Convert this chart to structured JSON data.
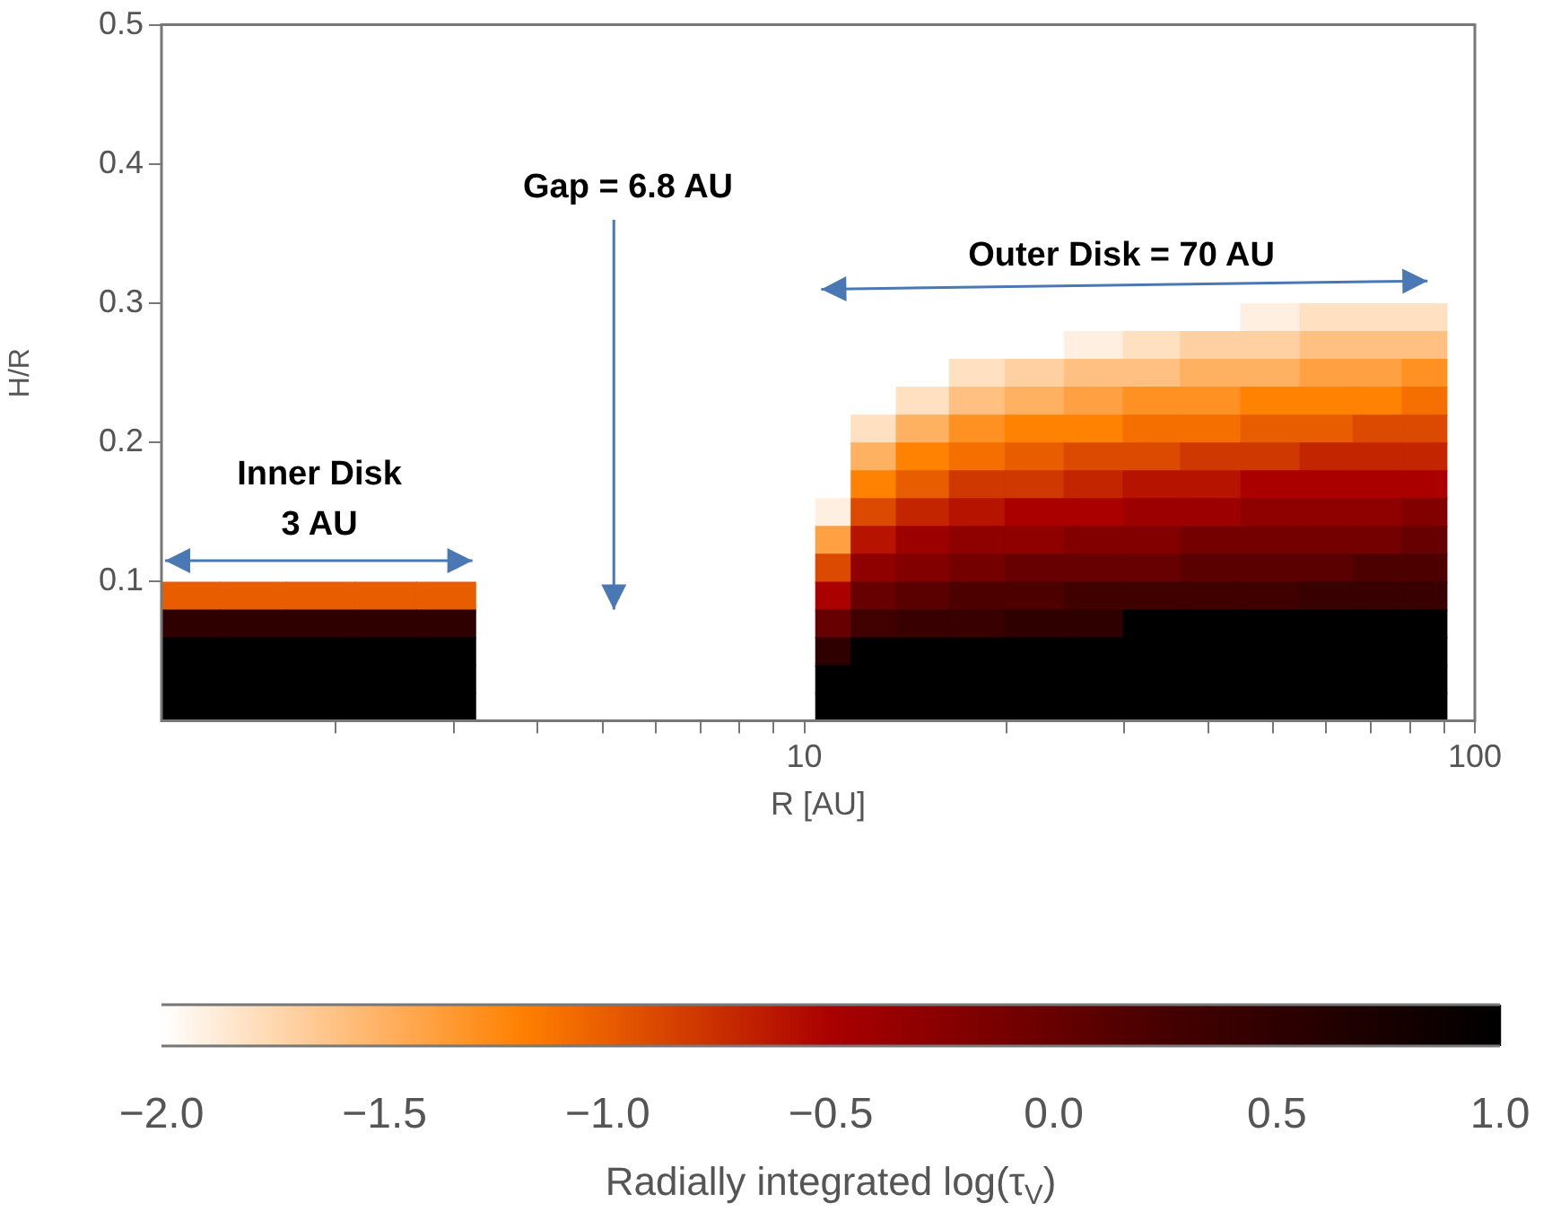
{
  "chart_data": {
    "type": "heatmap",
    "xlabel": "R [AU]",
    "ylabel": "H/R",
    "clabel": "Radially integrated log(τ$_{V}$)",
    "log": "x",
    "xlim": [
      1.1,
      100
    ],
    "xticks": [
      {
        "value": 2,
        "label": null
      },
      {
        "value": 3,
        "label": null
      },
      {
        "value": 4,
        "label": null
      },
      {
        "value": 5,
        "label": null
      },
      {
        "value": 6,
        "label": null
      },
      {
        "value": 7,
        "label": null
      },
      {
        "value": 8,
        "label": null
      },
      {
        "value": 9,
        "label": null
      },
      10,
      {
        "value": 20,
        "label": null
      },
      {
        "value": 30,
        "label": null
      },
      {
        "value": 40,
        "label": null
      },
      {
        "value": 50,
        "label": null
      },
      {
        "value": 60,
        "label": null
      },
      {
        "value": 70,
        "label": null
      },
      {
        "value": 80,
        "label": null
      },
      {
        "value": 90,
        "label": null
      },
      100
    ],
    "ylim": [
      0,
      0.5
    ],
    "yticks": [
      0.1,
      0.2,
      0.3,
      0.4,
      0.5
    ],
    "clim": [
      -2,
      1
    ],
    "cticks": [
      {
        "value": -2,
        "label": "−2.0"
      },
      {
        "value": -1.5,
        "label": "−1.5"
      },
      {
        "value": -1,
        "label": "−1.0"
      },
      {
        "value": -0.5,
        "label": "−0.5"
      },
      {
        "value": 0,
        "label": "0.0"
      },
      {
        "value": 0.5,
        "label": "0.5"
      },
      {
        "value": 1,
        "label": "1.0"
      }
    ],
    "x": [
      1.2,
      1.5,
      1.9,
      2.4,
      2.9,
      3.6,
      4.5,
      5.5,
      7,
      8.6,
      9.8,
      11,
      12.5,
      15,
      18,
      22,
      27,
      33,
      40,
      50,
      60,
      72,
      84,
      98
    ],
    "y": [
      0.29,
      0.27,
      0.25,
      0.23,
      0.21,
      0.19,
      0.17,
      0.15,
      0.13,
      0.11,
      0.09,
      0.07,
      0.05,
      0.03,
      0.01
    ],
    "cells": [
      [
        null,
        null,
        null,
        null,
        null,
        null,
        null,
        null,
        null,
        null,
        null,
        null,
        null,
        null,
        null,
        null,
        null,
        null,
        null,
        -1.9,
        -1.8,
        -1.8,
        -1.8,
        null
      ],
      [
        null,
        null,
        null,
        null,
        null,
        null,
        null,
        null,
        null,
        null,
        null,
        null,
        null,
        null,
        null,
        null,
        -1.9,
        -1.8,
        -1.7,
        -1.7,
        -1.6,
        -1.6,
        -1.6,
        null
      ],
      [
        null,
        null,
        null,
        null,
        null,
        null,
        null,
        null,
        null,
        null,
        null,
        null,
        null,
        null,
        -1.8,
        -1.7,
        -1.6,
        -1.6,
        -1.5,
        -1.5,
        -1.4,
        -1.4,
        -1.3,
        null
      ],
      [
        null,
        null,
        null,
        null,
        null,
        null,
        null,
        null,
        null,
        null,
        null,
        null,
        null,
        -1.8,
        -1.6,
        -1.5,
        -1.4,
        -1.3,
        -1.3,
        -1.2,
        -1.2,
        -1.2,
        -1.1,
        null
      ],
      [
        null,
        null,
        null,
        null,
        null,
        null,
        null,
        null,
        null,
        null,
        null,
        null,
        -1.8,
        -1.5,
        -1.3,
        -1.2,
        -1.2,
        -1.1,
        -1.1,
        -1.0,
        -1.0,
        -0.9,
        -0.9,
        null
      ],
      [
        null,
        null,
        null,
        null,
        null,
        null,
        null,
        null,
        null,
        null,
        null,
        null,
        -1.5,
        -1.2,
        -1.1,
        -1.0,
        -0.9,
        -0.9,
        -0.8,
        -0.8,
        -0.7,
        -0.7,
        -0.7,
        null
      ],
      [
        null,
        null,
        null,
        null,
        null,
        null,
        null,
        null,
        null,
        null,
        null,
        null,
        -1.2,
        -1.0,
        -0.8,
        -0.8,
        -0.7,
        -0.6,
        -0.6,
        -0.5,
        -0.5,
        -0.5,
        -0.5,
        null
      ],
      [
        null,
        null,
        null,
        null,
        null,
        null,
        null,
        null,
        null,
        null,
        null,
        -1.9,
        -0.9,
        -0.7,
        -0.6,
        -0.5,
        -0.5,
        -0.4,
        -0.4,
        -0.3,
        -0.3,
        -0.3,
        -0.2,
        null
      ],
      [
        null,
        null,
        null,
        null,
        null,
        null,
        null,
        null,
        null,
        null,
        null,
        -1.4,
        -0.6,
        -0.4,
        -0.3,
        -0.3,
        -0.2,
        -0.2,
        -0.1,
        -0.1,
        -0.1,
        -0.1,
        0.0,
        null
      ],
      [
        null,
        null,
        null,
        null,
        null,
        null,
        null,
        null,
        null,
        null,
        null,
        -0.9,
        -0.3,
        -0.2,
        -0.1,
        0.0,
        0.0,
        0.0,
        0.1,
        0.1,
        0.1,
        0.2,
        0.2,
        null
      ],
      [
        -1.0,
        -1.0,
        -1.0,
        -1.0,
        -1.0,
        null,
        null,
        null,
        null,
        null,
        null,
        -0.5,
        0.0,
        0.1,
        0.2,
        0.2,
        0.3,
        0.3,
        0.3,
        0.3,
        0.4,
        0.4,
        0.4,
        null
      ],
      [
        0.5,
        0.5,
        0.5,
        0.5,
        0.5,
        null,
        null,
        null,
        null,
        null,
        null,
        0.0,
        0.3,
        0.4,
        0.4,
        0.5,
        0.5,
        1,
        1,
        1,
        1,
        1,
        1,
        null
      ],
      [
        1,
        1,
        1,
        1,
        1,
        null,
        null,
        null,
        null,
        null,
        null,
        0.5,
        1,
        1,
        1,
        1,
        1,
        1,
        1,
        1,
        1,
        1,
        1,
        null
      ],
      [
        1,
        1,
        1,
        1,
        1,
        null,
        null,
        null,
        null,
        null,
        null,
        1,
        1,
        1,
        1,
        1,
        1,
        1,
        1,
        1,
        1,
        1,
        1,
        null
      ],
      [
        1,
        1,
        1,
        1,
        1,
        null,
        null,
        null,
        null,
        null,
        null,
        1,
        1,
        1,
        1,
        1,
        1,
        1,
        1,
        1,
        1,
        1,
        1,
        null
      ]
    ],
    "annotations": [
      "Inner Disk",
      "3 AU",
      "Gap = 6.8 AU",
      "Outer Disk = 70 AU"
    ]
  }
}
